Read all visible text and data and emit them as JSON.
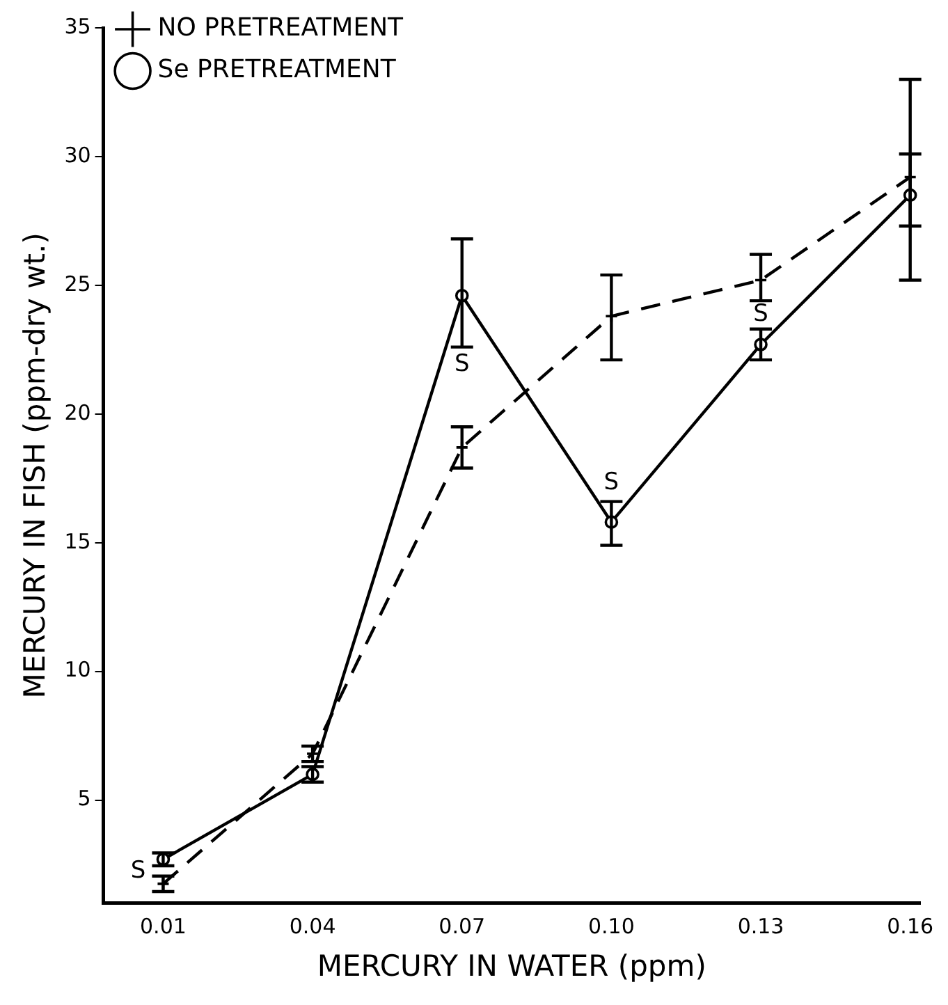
{
  "chart_data": {
    "type": "line",
    "xlabel": "MERCURY IN WATER (ppm)",
    "ylabel": "MERCURY IN FISH (ppm-dry wt.)",
    "x": [
      0.01,
      0.04,
      0.07,
      0.1,
      0.13,
      0.16
    ],
    "series": [
      {
        "name": "NO PRETREATMENT",
        "color": "#000000",
        "marker": "cross",
        "line_style": "dashed",
        "values": [
          1.75,
          6.8,
          18.7,
          23.8,
          25.2,
          29.2
        ],
        "errors": [
          0.3,
          0.3,
          [
            17.9,
            19.5
          ],
          [
            22.1,
            25.4
          ],
          [
            24.4,
            26.2
          ],
          [
            27.3,
            30.1
          ]
        ]
      },
      {
        "name": "Se PRETREATMENT",
        "color": "#000000",
        "marker": "circle",
        "line_style": "solid",
        "values": [
          2.7,
          6.0,
          24.6,
          15.8,
          22.7,
          28.5
        ],
        "errors": [
          0.25,
          0.3,
          [
            22.6,
            26.8
          ],
          [
            14.9,
            16.6
          ],
          [
            22.1,
            23.3
          ],
          [
            25.2,
            33.0
          ]
        ]
      }
    ],
    "xlim": [
      -0.002,
      0.162
    ],
    "xticks": [
      0.01,
      0.04,
      0.07,
      {
        "value": 0.1,
        "label": "0.10"
      },
      0.13,
      0.16
    ],
    "ylim": [
      1,
      35
    ],
    "yticks": [
      5,
      10,
      15,
      20,
      25,
      30,
      35
    ],
    "grid": false,
    "legend": "top left",
    "annotations": [
      {
        "text": "S",
        "x": 0.01,
        "y": 2.7
      },
      {
        "text": "S",
        "x": 0.07,
        "y": 24.6
      },
      {
        "text": "S",
        "x": 0.1,
        "y": 15.8
      },
      {
        "text": "S",
        "x": 0.13,
        "y": 22.7
      }
    ]
  }
}
